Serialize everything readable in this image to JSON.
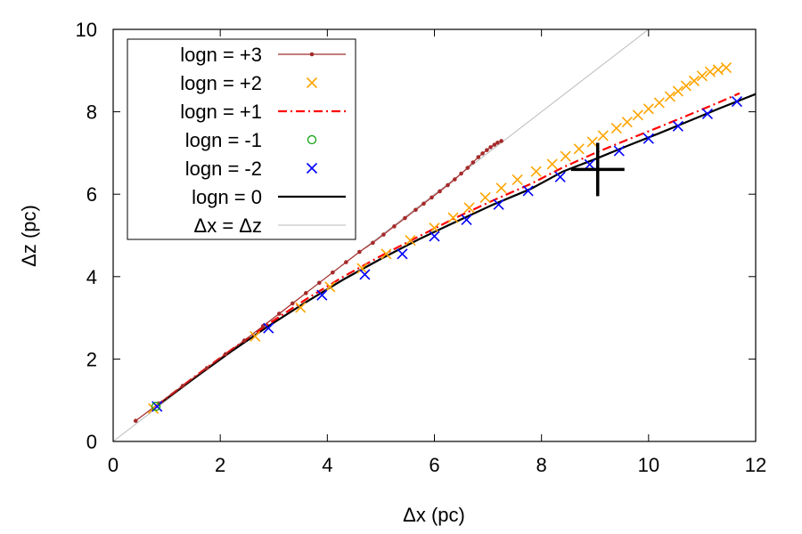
{
  "chart_data": {
    "type": "line",
    "xlabel": "Δx (pc)",
    "ylabel": "Δz (pc)",
    "xlim": [
      0,
      12
    ],
    "ylim": [
      0,
      10
    ],
    "xticks": [
      0,
      2,
      4,
      6,
      8,
      10,
      12
    ],
    "yticks": [
      0,
      2,
      4,
      6,
      8,
      10
    ],
    "grid": false,
    "legend_position": "top-left",
    "series": [
      {
        "name": "logn = +3",
        "style": "line-points",
        "color": "#a52a2a",
        "x": [
          0.42,
          0.85,
          1.3,
          1.75,
          2.1,
          2.45,
          2.8,
          3.1,
          3.35,
          3.6,
          3.85,
          4.1,
          4.35,
          4.6,
          4.85,
          5.05,
          5.25,
          5.45,
          5.65,
          5.8,
          5.95,
          6.1,
          6.25,
          6.38,
          6.5,
          6.62,
          6.72,
          6.82,
          6.9,
          6.98,
          7.05,
          7.12,
          7.18,
          7.25
        ],
        "y": [
          0.5,
          0.92,
          1.35,
          1.78,
          2.12,
          2.45,
          2.8,
          3.1,
          3.35,
          3.6,
          3.85,
          4.1,
          4.35,
          4.6,
          4.82,
          5.02,
          5.22,
          5.42,
          5.62,
          5.77,
          5.92,
          6.07,
          6.22,
          6.36,
          6.5,
          6.64,
          6.77,
          6.9,
          6.99,
          7.07,
          7.14,
          7.2,
          7.25,
          7.29
        ]
      },
      {
        "name": "logn = +2",
        "style": "points-x",
        "color": "#ffa500",
        "x": [
          0.75,
          2.65,
          3.5,
          4.05,
          4.65,
          5.1,
          5.55,
          6.0,
          6.35,
          6.65,
          6.95,
          7.25,
          7.55,
          7.9,
          8.2,
          8.45,
          8.7,
          8.95,
          9.15,
          9.4,
          9.6,
          9.8,
          10.0,
          10.2,
          10.4,
          10.55,
          10.7,
          10.85,
          11.0,
          11.15,
          11.3,
          11.45
        ],
        "y": [
          0.8,
          2.55,
          3.25,
          3.75,
          4.2,
          4.55,
          4.88,
          5.18,
          5.43,
          5.67,
          5.92,
          6.15,
          6.35,
          6.55,
          6.73,
          6.92,
          7.1,
          7.27,
          7.42,
          7.6,
          7.75,
          7.92,
          8.07,
          8.22,
          8.37,
          8.5,
          8.63,
          8.75,
          8.87,
          8.97,
          9.02,
          9.07
        ]
      },
      {
        "name": "logn = +1",
        "style": "dash-dot",
        "color": "#ff0000",
        "x": [
          0.8,
          1.5,
          2.2,
          2.9,
          3.6,
          4.3,
          5.0,
          5.7,
          6.4,
          7.1,
          7.8,
          8.4,
          9.0,
          9.6,
          10.2,
          10.8,
          11.3,
          11.7
        ],
        "y": [
          0.86,
          1.55,
          2.22,
          2.85,
          3.45,
          4.0,
          4.5,
          4.97,
          5.43,
          5.85,
          6.25,
          6.65,
          7.0,
          7.32,
          7.63,
          7.95,
          8.22,
          8.45
        ]
      },
      {
        "name": "logn = -1",
        "style": "points-circle",
        "color": "#009900",
        "x": [
          0.8
        ],
        "y": [
          0.85
        ]
      },
      {
        "name": "logn = -2",
        "style": "points-x",
        "color": "#0000ff",
        "x": [
          0.82,
          2.9,
          3.9,
          4.7,
          5.4,
          6.0,
          6.6,
          7.2,
          7.75,
          8.35,
          8.9,
          9.45,
          10.0,
          10.55,
          11.1,
          11.65
        ],
        "y": [
          0.85,
          2.75,
          3.55,
          4.05,
          4.55,
          4.98,
          5.38,
          5.75,
          6.08,
          6.42,
          6.72,
          7.05,
          7.35,
          7.65,
          7.95,
          8.25
        ]
      },
      {
        "name": "logn = 0",
        "style": "solid",
        "color": "#000000",
        "x": [
          0.8,
          1.5,
          2.2,
          2.9,
          3.6,
          4.3,
          5.0,
          5.7,
          6.4,
          7.1,
          7.8,
          8.4,
          9.0,
          9.6,
          10.2,
          10.8,
          11.3,
          12.0
        ],
        "y": [
          0.85,
          1.52,
          2.18,
          2.8,
          3.38,
          3.93,
          4.43,
          4.9,
          5.33,
          5.75,
          6.13,
          6.55,
          6.85,
          7.17,
          7.48,
          7.8,
          8.07,
          8.43
        ]
      },
      {
        "name": "Δx = Δz",
        "style": "thin-line",
        "color": "#bbbbbb",
        "x": [
          0,
          10
        ],
        "y": [
          0,
          10
        ]
      }
    ],
    "annotations": [
      {
        "type": "plus-marker",
        "x": 9.05,
        "y": 6.6,
        "color": "#000000"
      }
    ]
  }
}
